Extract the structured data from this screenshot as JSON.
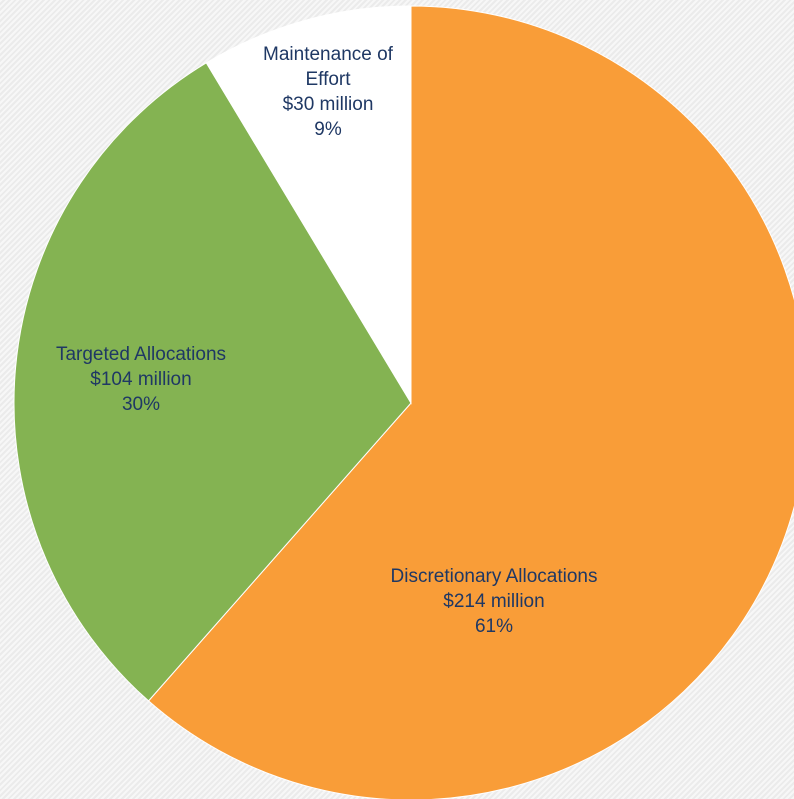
{
  "chart_data": {
    "type": "pie",
    "title": "",
    "slices": [
      {
        "label": "Discretionary Allocations",
        "value": 214,
        "display_value": "$214 million",
        "percent": "61%",
        "color": "#f99d38"
      },
      {
        "label": "Targeted Allocations",
        "value": 104,
        "display_value": "$104 million",
        "percent": "30%",
        "color": "#84b352"
      },
      {
        "label": "Maintenance of Effort",
        "value": 30,
        "display_value": "$30 million",
        "percent": "9%",
        "color": "#ffffff"
      }
    ],
    "label_color": "#1f3864",
    "legend": "none"
  }
}
